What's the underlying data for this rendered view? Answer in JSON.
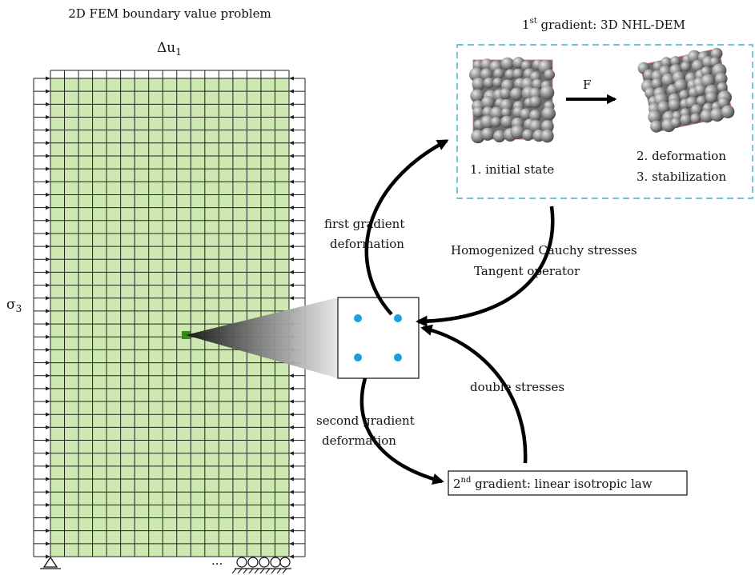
{
  "fem": {
    "title": "2D FEM boundary value problem",
    "top_load_symbol": "Δu",
    "top_load_subscript": "1",
    "side_load_symbol": "σ",
    "side_load_subscript": "3",
    "ellipsis": "...",
    "mesh_columns": 17,
    "mesh_rows": 37,
    "mesh_color": "#cde8b0",
    "selected_element_color": "#3a8a1a"
  },
  "first_gradient": {
    "title_prefix": "1",
    "title_sup": "st",
    "title_suffix": " gradient: 3D NHL-DEM",
    "box_border_color": "#3bb3c4",
    "transform_label": "F",
    "initial_state_label": "1. initial state",
    "deformation_label": "2. deformation",
    "stabilization_label": "3. stabilization"
  },
  "gauss": {
    "point_color": "#1aa0dc"
  },
  "arrows": {
    "first_gradient_line1": "first gradient",
    "first_gradient_line2": "deformation",
    "homogenized_line1": "Homogenized Cauchy stresses",
    "homogenized_line2": "Tangent operator",
    "double_stresses": "double stresses",
    "second_gradient_line1": "second gradient",
    "second_gradient_line2": "deformation"
  },
  "second_gradient": {
    "title_prefix": "2",
    "title_sup": "nd",
    "title_suffix": " gradient: linear isotropic law"
  }
}
